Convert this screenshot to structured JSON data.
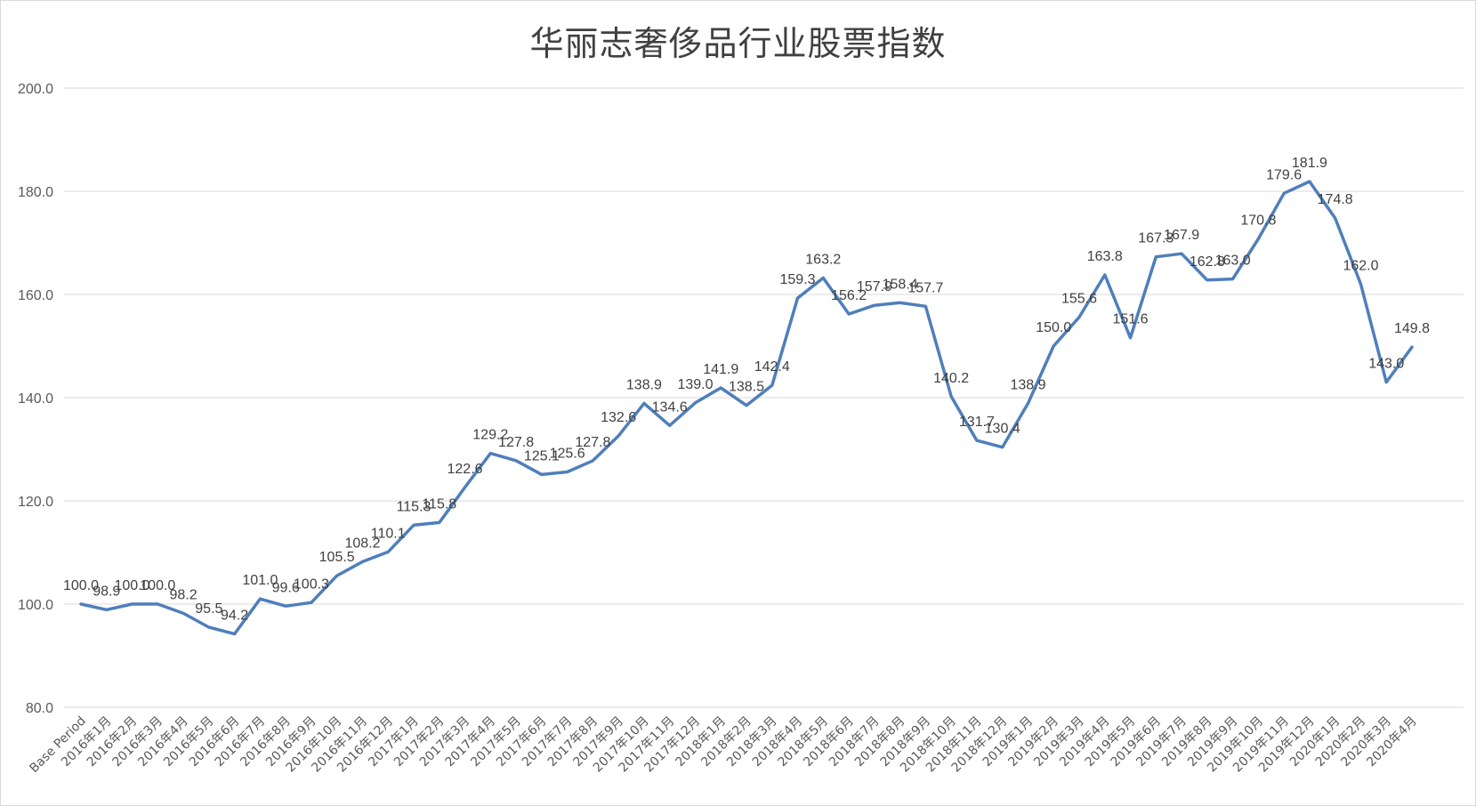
{
  "chart_data": {
    "type": "line",
    "title": "华丽志奢侈品行业股票指数",
    "xlabel": "",
    "ylabel": "",
    "ylim": [
      80,
      200
    ],
    "yticks": [
      80,
      100,
      120,
      140,
      160,
      180,
      200
    ],
    "ytick_labels": [
      "80.0",
      "100.0",
      "120.0",
      "140.0",
      "160.0",
      "180.0",
      "200.0"
    ],
    "grid": true,
    "legend": "none",
    "line_color": "#4f7fbb",
    "categories": [
      "Base Period",
      "2016年1月",
      "2016年2月",
      "2016年3月",
      "2016年4月",
      "2016年5月",
      "2016年6月",
      "2016年7月",
      "2016年8月",
      "2016年9月",
      "2016年10月",
      "2016年11月",
      "2016年12月",
      "2017年1月",
      "2017年2月",
      "2017年3月",
      "2017年4月",
      "2017年5月",
      "2017年6月",
      "2017年7月",
      "2017年8月",
      "2017年9月",
      "2017年10月",
      "2017年11月",
      "2017年12月",
      "2018年1月",
      "2018年2月",
      "2018年3月",
      "2018年4月",
      "2018年5月",
      "2018年6月",
      "2018年7月",
      "2018年8月",
      "2018年9月",
      "2018年10月",
      "2018年11月",
      "2018年12月",
      "2019年1月",
      "2019年2月",
      "2019年3月",
      "2019年4月",
      "2019年5月",
      "2019年6月",
      "2019年7月",
      "2019年8月",
      "2019年9月",
      "2019年10月",
      "2019年11月",
      "2019年12月",
      "2020年1月",
      "2020年2月",
      "2020年3月",
      "2020年4月"
    ],
    "series": [
      {
        "values": [
          100.0,
          98.9,
          100.0,
          100.0,
          98.2,
          95.5,
          94.2,
          101.0,
          99.6,
          100.3,
          105.5,
          108.2,
          110.1,
          115.3,
          115.8,
          122.6,
          129.2,
          127.8,
          125.1,
          125.6,
          127.8,
          132.6,
          138.9,
          134.6,
          139.0,
          141.9,
          138.5,
          142.4,
          159.3,
          163.2,
          156.2,
          157.9,
          158.4,
          157.7,
          140.2,
          131.7,
          130.4,
          138.9,
          150.0,
          155.6,
          163.8,
          151.6,
          167.3,
          167.9,
          162.8,
          163.0,
          170.8,
          179.6,
          181.9,
          174.8,
          162.0,
          143.0,
          149.8
        ],
        "labels": [
          "100.0",
          "98.9",
          "100.0",
          "100.0",
          "98.2",
          "95.5",
          "94.2",
          "101.0",
          "99.6",
          "100.3",
          "105.5",
          "108.2",
          "110.1",
          "115.3",
          "115.8",
          "122.6",
          "129.2",
          "127.8",
          "125.1",
          "125.6",
          "127.8",
          "132.6",
          "138.9",
          "134.6",
          "139.0",
          "141.9",
          "138.5",
          "142.4",
          "159.3",
          "163.2",
          "156.2",
          "157.9",
          "158.4",
          "157.7",
          "140.2",
          "131.7",
          "130.4",
          "138.9",
          "150.0",
          "155.6",
          "163.8",
          "151.6",
          "167.3",
          "167.9",
          "162.8",
          "163.0",
          "170.8",
          "179.6",
          "181.9",
          "174.8",
          "162.0",
          "143.0",
          "149.8"
        ]
      }
    ]
  }
}
